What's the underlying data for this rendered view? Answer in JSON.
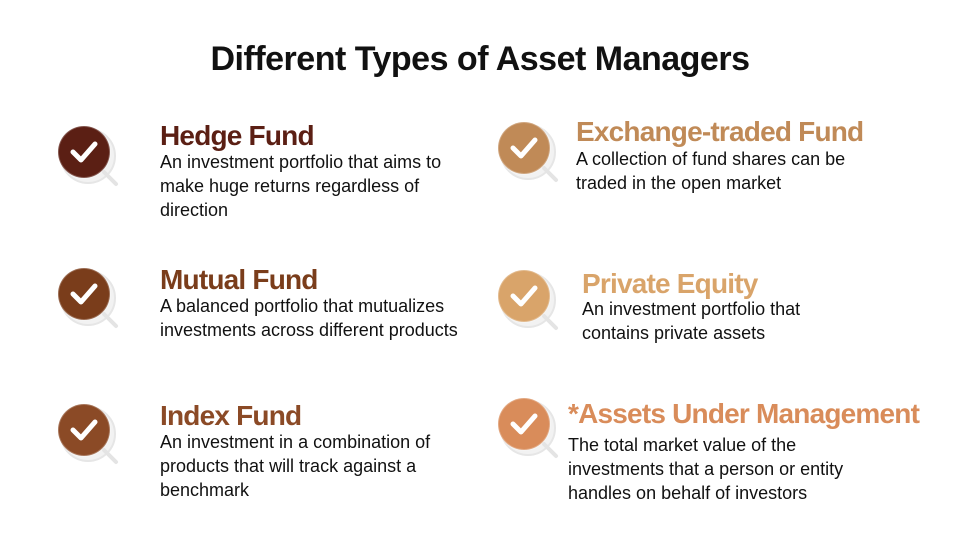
{
  "title": "Different Types of Asset Managers",
  "items": [
    {
      "heading": "Hedge Fund",
      "description": "An investment portfolio that aims to make huge returns regardless of direction",
      "color": "#5b1f14",
      "icon": "check-circle-icon"
    },
    {
      "heading": "Mutual Fund",
      "description": "A balanced portfolio that mutualizes investments across different products",
      "color": "#7a3d1b",
      "icon": "check-circle-icon"
    },
    {
      "heading": "Index Fund",
      "description": "An investment in a combination of products that will track against a benchmark",
      "color": "#8b4a26",
      "icon": "check-circle-icon"
    },
    {
      "heading": "Exchange-traded Fund",
      "description": "A collection of fund shares can be traded in the open market",
      "color": "#c08a57",
      "icon": "check-circle-icon"
    },
    {
      "heading": "Private Equity",
      "description": "An investment portfolio that contains private assets",
      "color": "#d9a46a",
      "icon": "check-circle-icon"
    },
    {
      "heading": "*Assets Under Management",
      "description": "The total market value of the investments that a person or entity handles on behalf of investors",
      "color": "#d98c5a",
      "icon": "check-circle-icon"
    }
  ]
}
